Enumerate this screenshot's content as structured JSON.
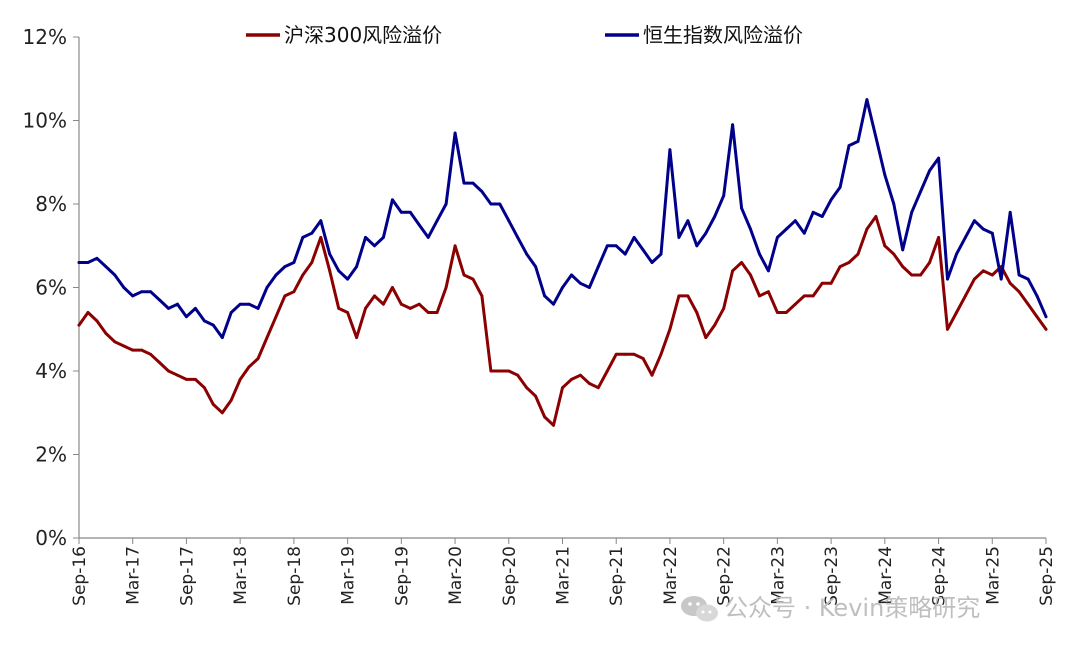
{
  "chart_data": {
    "type": "line",
    "title": "",
    "xlabel": "",
    "ylabel": "",
    "ylim": [
      0,
      12
    ],
    "yticks": [
      "0%",
      "2%",
      "4%",
      "6%",
      "8%",
      "10%",
      "12%"
    ],
    "xticks": [
      "Sep-16",
      "Mar-17",
      "Sep-17",
      "Mar-18",
      "Sep-18",
      "Mar-19",
      "Sep-19",
      "Mar-20",
      "Sep-20",
      "Mar-21",
      "Sep-21",
      "Mar-22",
      "Sep-22",
      "Mar-23",
      "Sep-23",
      "Mar-24",
      "Sep-24",
      "Mar-25",
      "Sep-25"
    ],
    "legend_position": "top",
    "grid": false,
    "series": [
      {
        "name": "沪深300风险溢价",
        "color": "#8B0000",
        "points": [
          [
            "Sep-16",
            5.1
          ],
          [
            "Oct-16",
            5.4
          ],
          [
            "Nov-16",
            5.2
          ],
          [
            "Dec-16",
            4.9
          ],
          [
            "Jan-17",
            4.7
          ],
          [
            "Feb-17",
            4.6
          ],
          [
            "Mar-17",
            4.5
          ],
          [
            "Apr-17",
            4.5
          ],
          [
            "May-17",
            4.4
          ],
          [
            "Jun-17",
            4.2
          ],
          [
            "Jul-17",
            4.0
          ],
          [
            "Aug-17",
            3.9
          ],
          [
            "Sep-17",
            3.8
          ],
          [
            "Oct-17",
            3.8
          ],
          [
            "Nov-17",
            3.6
          ],
          [
            "Dec-17",
            3.2
          ],
          [
            "Jan-18",
            3.0
          ],
          [
            "Feb-18",
            3.3
          ],
          [
            "Mar-18",
            3.8
          ],
          [
            "Apr-18",
            4.1
          ],
          [
            "May-18",
            4.3
          ],
          [
            "Jun-18",
            4.8
          ],
          [
            "Jul-18",
            5.3
          ],
          [
            "Aug-18",
            5.8
          ],
          [
            "Sep-18",
            5.9
          ],
          [
            "Oct-18",
            6.3
          ],
          [
            "Nov-18",
            6.6
          ],
          [
            "Dec-18",
            7.2
          ],
          [
            "Jan-19",
            6.4
          ],
          [
            "Feb-19",
            5.5
          ],
          [
            "Mar-19",
            5.4
          ],
          [
            "Apr-19",
            4.8
          ],
          [
            "May-19",
            5.5
          ],
          [
            "Jun-19",
            5.8
          ],
          [
            "Jul-19",
            5.6
          ],
          [
            "Aug-19",
            6.0
          ],
          [
            "Sep-19",
            5.6
          ],
          [
            "Oct-19",
            5.5
          ],
          [
            "Nov-19",
            5.6
          ],
          [
            "Dec-19",
            5.4
          ],
          [
            "Jan-20",
            5.4
          ],
          [
            "Feb-20",
            6.0
          ],
          [
            "Mar-20",
            7.0
          ],
          [
            "Apr-20",
            6.3
          ],
          [
            "May-20",
            6.2
          ],
          [
            "Jun-20",
            5.8
          ],
          [
            "Jul-20",
            4.0
          ],
          [
            "Aug-20",
            4.0
          ],
          [
            "Sep-20",
            4.0
          ],
          [
            "Oct-20",
            3.9
          ],
          [
            "Nov-20",
            3.6
          ],
          [
            "Dec-20",
            3.4
          ],
          [
            "Jan-21",
            2.9
          ],
          [
            "Feb-21",
            2.7
          ],
          [
            "Mar-21",
            3.6
          ],
          [
            "Apr-21",
            3.8
          ],
          [
            "May-21",
            3.9
          ],
          [
            "Jun-21",
            3.7
          ],
          [
            "Jul-21",
            3.6
          ],
          [
            "Aug-21",
            4.0
          ],
          [
            "Sep-21",
            4.4
          ],
          [
            "Oct-21",
            4.4
          ],
          [
            "Nov-21",
            4.4
          ],
          [
            "Dec-21",
            4.3
          ],
          [
            "Jan-22",
            3.9
          ],
          [
            "Feb-22",
            4.4
          ],
          [
            "Mar-22",
            5.0
          ],
          [
            "Apr-22",
            5.8
          ],
          [
            "May-22",
            5.8
          ],
          [
            "Jun-22",
            5.4
          ],
          [
            "Jul-22",
            4.8
          ],
          [
            "Aug-22",
            5.1
          ],
          [
            "Sep-22",
            5.5
          ],
          [
            "Oct-22",
            6.4
          ],
          [
            "Nov-22",
            6.6
          ],
          [
            "Dec-22",
            6.3
          ],
          [
            "Jan-23",
            5.8
          ],
          [
            "Feb-23",
            5.9
          ],
          [
            "Mar-23",
            5.4
          ],
          [
            "Apr-23",
            5.4
          ],
          [
            "May-23",
            5.6
          ],
          [
            "Jun-23",
            5.8
          ],
          [
            "Jul-23",
            5.8
          ],
          [
            "Aug-23",
            6.1
          ],
          [
            "Sep-23",
            6.1
          ],
          [
            "Oct-23",
            6.5
          ],
          [
            "Nov-23",
            6.6
          ],
          [
            "Dec-23",
            6.8
          ],
          [
            "Jan-24",
            7.4
          ],
          [
            "Feb-24",
            7.7
          ],
          [
            "Mar-24",
            7.0
          ],
          [
            "Apr-24",
            6.8
          ],
          [
            "May-24",
            6.5
          ],
          [
            "Jun-24",
            6.3
          ],
          [
            "Jul-24",
            6.3
          ],
          [
            "Aug-24",
            6.6
          ],
          [
            "Sep-24",
            7.2
          ],
          [
            "Oct-24",
            5.0
          ],
          [
            "Nov-24",
            5.4
          ],
          [
            "Dec-24",
            5.8
          ],
          [
            "Jan-25",
            6.2
          ],
          [
            "Feb-25",
            6.4
          ],
          [
            "Mar-25",
            6.3
          ],
          [
            "Apr-25",
            6.5
          ],
          [
            "May-25",
            6.1
          ],
          [
            "Jun-25",
            5.9
          ],
          [
            "Jul-25",
            5.6
          ],
          [
            "Aug-25",
            5.3
          ],
          [
            "Sep-25",
            5.0
          ]
        ]
      },
      {
        "name": "恒生指数风险溢价",
        "color": "#00008B",
        "points": [
          [
            "Sep-16",
            6.6
          ],
          [
            "Oct-16",
            6.6
          ],
          [
            "Nov-16",
            6.7
          ],
          [
            "Dec-16",
            6.5
          ],
          [
            "Jan-17",
            6.3
          ],
          [
            "Feb-17",
            6.0
          ],
          [
            "Mar-17",
            5.8
          ],
          [
            "Apr-17",
            5.9
          ],
          [
            "May-17",
            5.9
          ],
          [
            "Jun-17",
            5.7
          ],
          [
            "Jul-17",
            5.5
          ],
          [
            "Aug-17",
            5.6
          ],
          [
            "Sep-17",
            5.3
          ],
          [
            "Oct-17",
            5.5
          ],
          [
            "Nov-17",
            5.2
          ],
          [
            "Dec-17",
            5.1
          ],
          [
            "Jan-18",
            4.8
          ],
          [
            "Feb-18",
            5.4
          ],
          [
            "Mar-18",
            5.6
          ],
          [
            "Apr-18",
            5.6
          ],
          [
            "May-18",
            5.5
          ],
          [
            "Jun-18",
            6.0
          ],
          [
            "Jul-18",
            6.3
          ],
          [
            "Aug-18",
            6.5
          ],
          [
            "Sep-18",
            6.6
          ],
          [
            "Oct-18",
            7.2
          ],
          [
            "Nov-18",
            7.3
          ],
          [
            "Dec-18",
            7.6
          ],
          [
            "Jan-19",
            6.8
          ],
          [
            "Feb-19",
            6.4
          ],
          [
            "Mar-19",
            6.2
          ],
          [
            "Apr-19",
            6.5
          ],
          [
            "May-19",
            7.2
          ],
          [
            "Jun-19",
            7.0
          ],
          [
            "Jul-19",
            7.2
          ],
          [
            "Aug-19",
            8.1
          ],
          [
            "Sep-19",
            7.8
          ],
          [
            "Oct-19",
            7.8
          ],
          [
            "Nov-19",
            7.5
          ],
          [
            "Dec-19",
            7.2
          ],
          [
            "Jan-20",
            7.6
          ],
          [
            "Feb-20",
            8.0
          ],
          [
            "Mar-20",
            9.7
          ],
          [
            "Apr-20",
            8.5
          ],
          [
            "May-20",
            8.5
          ],
          [
            "Jun-20",
            8.3
          ],
          [
            "Jul-20",
            8.0
          ],
          [
            "Aug-20",
            8.0
          ],
          [
            "Sep-20",
            7.6
          ],
          [
            "Oct-20",
            7.2
          ],
          [
            "Nov-20",
            6.8
          ],
          [
            "Dec-20",
            6.5
          ],
          [
            "Jan-21",
            5.8
          ],
          [
            "Feb-21",
            5.6
          ],
          [
            "Mar-21",
            6.0
          ],
          [
            "Apr-21",
            6.3
          ],
          [
            "May-21",
            6.1
          ],
          [
            "Jun-21",
            6.0
          ],
          [
            "Jul-21",
            6.5
          ],
          [
            "Aug-21",
            7.0
          ],
          [
            "Sep-21",
            7.0
          ],
          [
            "Oct-21",
            6.8
          ],
          [
            "Nov-21",
            7.2
          ],
          [
            "Dec-21",
            6.9
          ],
          [
            "Jan-22",
            6.6
          ],
          [
            "Feb-22",
            6.8
          ],
          [
            "Mar-22",
            9.3
          ],
          [
            "Apr-22",
            7.2
          ],
          [
            "May-22",
            7.6
          ],
          [
            "Jun-22",
            7.0
          ],
          [
            "Jul-22",
            7.3
          ],
          [
            "Aug-22",
            7.7
          ],
          [
            "Sep-22",
            8.2
          ],
          [
            "Oct-22",
            9.9
          ],
          [
            "Nov-22",
            7.9
          ],
          [
            "Dec-22",
            7.4
          ],
          [
            "Jan-23",
            6.8
          ],
          [
            "Feb-23",
            6.4
          ],
          [
            "Mar-23",
            7.2
          ],
          [
            "Apr-23",
            7.4
          ],
          [
            "May-23",
            7.6
          ],
          [
            "Jun-23",
            7.3
          ],
          [
            "Jul-23",
            7.8
          ],
          [
            "Aug-23",
            7.7
          ],
          [
            "Sep-23",
            8.1
          ],
          [
            "Oct-23",
            8.4
          ],
          [
            "Nov-23",
            9.4
          ],
          [
            "Dec-23",
            9.5
          ],
          [
            "Jan-24",
            10.5
          ],
          [
            "Feb-24",
            9.6
          ],
          [
            "Mar-24",
            8.7
          ],
          [
            "Apr-24",
            8.0
          ],
          [
            "May-24",
            6.9
          ],
          [
            "Jun-24",
            7.8
          ],
          [
            "Jul-24",
            8.3
          ],
          [
            "Aug-24",
            8.8
          ],
          [
            "Sep-24",
            9.1
          ],
          [
            "Oct-24",
            6.2
          ],
          [
            "Nov-24",
            6.8
          ],
          [
            "Dec-24",
            7.2
          ],
          [
            "Jan-25",
            7.6
          ],
          [
            "Feb-25",
            7.4
          ],
          [
            "Mar-25",
            7.3
          ],
          [
            "Apr-25",
            6.2
          ],
          [
            "May-25",
            7.8
          ],
          [
            "Jun-25",
            6.3
          ],
          [
            "Jul-25",
            6.2
          ],
          [
            "Aug-25",
            5.8
          ],
          [
            "Sep-25",
            5.3
          ]
        ]
      }
    ]
  },
  "watermark": {
    "text": "公众号 · Kevin策略研究",
    "icon": "wechat-icon"
  }
}
